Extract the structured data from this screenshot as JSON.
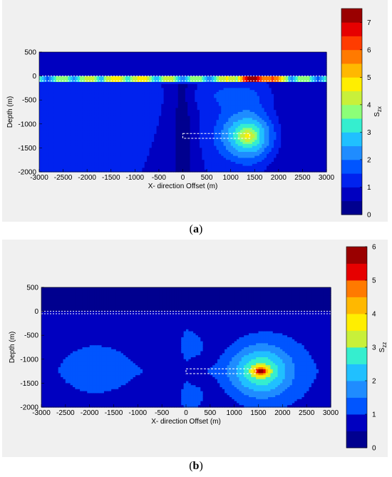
{
  "colormap": [
    "#00008f",
    "#0000c0",
    "#0022ee",
    "#0055ff",
    "#1f8cff",
    "#20c0ff",
    "#35eecf",
    "#8cff78",
    "#c8f03a",
    "#ffee00",
    "#ffb800",
    "#ff7a00",
    "#ff3c00",
    "#e60000",
    "#9a0000"
  ],
  "captions": {
    "a_left": "(",
    "a_letter": "a",
    "a_right": ")",
    "b_left": "(",
    "b_letter": "b",
    "b_right": ")"
  },
  "chart_data": [
    {
      "type": "heatmap",
      "subplot": "a",
      "xlabel": "X- direction Offset (m)",
      "ylabel": "Depth (m)",
      "colorbar_label": "S_zx",
      "colorbar_label_main": "S",
      "colorbar_label_sub": "zx",
      "xlim": [
        -3000,
        3000
      ],
      "ylim": [
        -2000,
        500
      ],
      "x_ticks": [
        -3000,
        -2500,
        -2000,
        -1500,
        -1000,
        -500,
        0,
        500,
        1000,
        1500,
        2000,
        2500,
        3000
      ],
      "y_ticks": [
        500,
        0,
        -500,
        -1000,
        -1500,
        -2000
      ],
      "colorbar_range": [
        0,
        7.5
      ],
      "colorbar_ticks": [
        0,
        1,
        2,
        3,
        4,
        5,
        6,
        7
      ],
      "levels": 15,
      "seam_band_depth": [
        -100,
        0
      ],
      "seam_band_peak": {
        "x": 1500,
        "value": 7.2
      },
      "tunnel": {
        "x_start": 0,
        "x_end": 1400,
        "depth_top": -1200,
        "depth_bottom": -1300
      },
      "hotspot": {
        "x": 1350,
        "depth": -1250,
        "value": 3.6
      },
      "background_value": 1.0
    },
    {
      "type": "heatmap",
      "subplot": "b",
      "xlabel": "X- direction Offset (m)",
      "ylabel": "Depth (m)",
      "colorbar_label": "S_zz",
      "colorbar_label_main": "S",
      "colorbar_label_sub": "zz",
      "xlim": [
        -3000,
        3000
      ],
      "ylim": [
        -2000,
        500
      ],
      "x_ticks": [
        -3000,
        -2500,
        -2000,
        -1500,
        -1000,
        -500,
        0,
        500,
        1000,
        1500,
        2000,
        2500,
        3000
      ],
      "y_ticks": [
        500,
        0,
        -500,
        -1000,
        -1500,
        -2000
      ],
      "colorbar_range": [
        0,
        6
      ],
      "colorbar_ticks": [
        0,
        1,
        2,
        3,
        4,
        5,
        6
      ],
      "levels": 12,
      "seam_band_depth": [
        -50,
        0
      ],
      "tunnel": {
        "x_start": 0,
        "x_end": 1450,
        "depth_top": -1200,
        "depth_bottom": -1300
      },
      "hotspot": {
        "x": 1550,
        "depth": -1250,
        "value": 5.8
      },
      "background_value": 0.7
    }
  ]
}
